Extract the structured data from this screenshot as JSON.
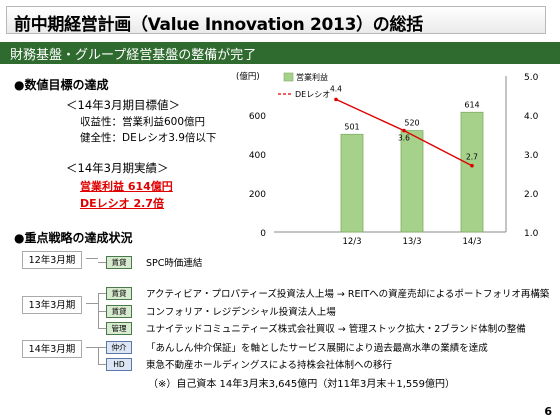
{
  "title": "前中期経営計画（Value Innovation 2013）の総括",
  "banner": "財務基盤・グループ経営基盤の整備が完了",
  "goals": {
    "heading": "●数値目標の達成",
    "target_title": "＜14年3月期目標値＞",
    "target_line1": "収益性：営業利益600億円",
    "target_line2": "健全性：DEレシオ3.9倍以下",
    "actual_title": "＜14年3月期実績＞",
    "actual_line1": "営業利益 614億円",
    "actual_line2": "DEレシオ 2.7倍"
  },
  "strategy": {
    "heading": "●重点戦略の達成状況",
    "groups": [
      {
        "year": "12年3月期",
        "items": [
          {
            "tag": "賃貸",
            "text": "SPC時価連結",
            "tag_color": "green"
          }
        ]
      },
      {
        "year": "13年3月期",
        "items": [
          {
            "tag": "賃貸",
            "text": "アクティビア・プロパティーズ投資法人上場 → REITへの資産売却によるポートフォリオ再構築",
            "tag_color": "green"
          },
          {
            "tag": "賃貸",
            "text": "コンフォリア・レジデンシャル投資法人上場",
            "tag_color": "green"
          },
          {
            "tag": "管理",
            "text": "ユナイテッドコミュニティーズ株式会社買収 → 管理ストック拡大・2ブランド体制の整備",
            "tag_color": "green"
          }
        ]
      },
      {
        "year": "14年3月期",
        "items": [
          {
            "tag": "仲介",
            "text": "「あんしん仲介保証」を軸としたサービス展開により過去最高水準の業績を達成",
            "tag_color": "blue"
          },
          {
            "tag": "HD",
            "text": "東急不動産ホールディングスによる持株会社体制への移行",
            "tag_color": "blue"
          }
        ]
      }
    ],
    "footnote": "（※）自己資本 14年3月末3,645億円（対11年3月末＋1,559億円）"
  },
  "page_number": "6",
  "chart_data": {
    "type": "bar",
    "categories": [
      "12/3",
      "13/3",
      "14/3"
    ],
    "series": [
      {
        "name": "営業利益",
        "kind": "bar",
        "axis": "left",
        "values": [
          501,
          520,
          614
        ],
        "color": "#a6d18a"
      },
      {
        "name": "DEレシオ",
        "kind": "line",
        "axis": "right",
        "values": [
          4.4,
          3.6,
          2.7
        ],
        "color": "#e00000"
      }
    ],
    "left_axis_unit": "(億円)",
    "left_ylim": [
      0,
      800
    ],
    "left_ticks": [
      "0",
      "200",
      "400",
      "600"
    ],
    "right_ylim": [
      1.0,
      5.0
    ],
    "right_ticks": [
      "1.0",
      "2.0",
      "3.0",
      "4.0",
      "5.0"
    ],
    "data_labels_bar": [
      "501",
      "520",
      "614"
    ],
    "data_labels_line": [
      "4.4",
      "3.6",
      "2.7"
    ],
    "legend_position": "top-left",
    "grid": false
  }
}
